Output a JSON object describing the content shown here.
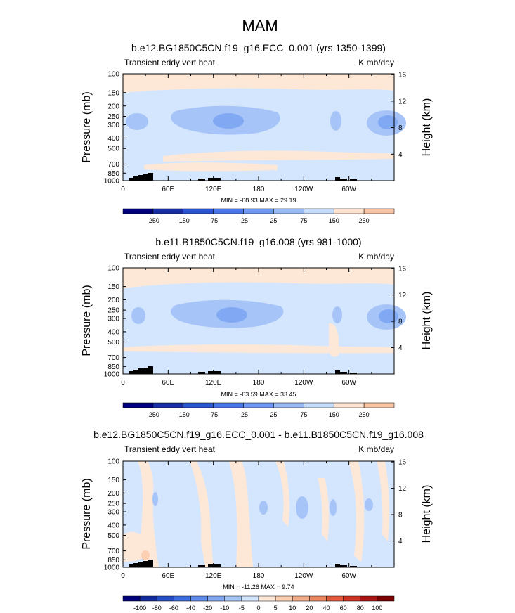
{
  "figure_title": "MAM",
  "chart_data": [
    {
      "type": "heatmap",
      "title": "b.e12.BG1850C5CN.f19_g16.ECC_0.001 (yrs 1350-1399)",
      "left_label": "Transient eddy vert heat",
      "right_label": "K mb/day",
      "ylabel": "Pressure (mb)",
      "ylabel_right": "Height (km)",
      "x_ticks": [
        "0",
        "60E",
        "120E",
        "180",
        "120W",
        "60W"
      ],
      "x_tick_values": [
        0,
        60,
        120,
        180,
        240,
        300
      ],
      "xlim": [
        0,
        360
      ],
      "y_ticks": [
        "100",
        "150",
        "200",
        "250",
        "300",
        "400",
        "500",
        "700",
        "850",
        "1000"
      ],
      "y_tick_values": [
        100,
        150,
        200,
        250,
        300,
        400,
        500,
        700,
        850,
        1000
      ],
      "ylim": [
        1000,
        100
      ],
      "y_right_ticks": [
        "4",
        "8",
        "12",
        "16"
      ],
      "y_right_values": [
        4,
        8,
        12,
        16
      ],
      "stats": "MIN = -68.93  MAX =  29.19",
      "min": -68.93,
      "max": 29.19,
      "colorbar_ticks": [
        "-250",
        "-150",
        "-75",
        "-25",
        "25",
        "75",
        "150",
        "250"
      ]
    },
    {
      "type": "heatmap",
      "title": "b.e11.B1850C5CN.f19_g16.008 (yrs 981-1000)",
      "left_label": "Transient eddy vert heat",
      "right_label": "K mb/day",
      "ylabel": "Pressure (mb)",
      "ylabel_right": "Height (km)",
      "x_ticks": [
        "0",
        "60E",
        "120E",
        "180",
        "120W",
        "60W"
      ],
      "x_tick_values": [
        0,
        60,
        120,
        180,
        240,
        300
      ],
      "xlim": [
        0,
        360
      ],
      "y_ticks": [
        "100",
        "150",
        "200",
        "250",
        "300",
        "400",
        "500",
        "700",
        "850",
        "1000"
      ],
      "y_tick_values": [
        100,
        150,
        200,
        250,
        300,
        400,
        500,
        700,
        850,
        1000
      ],
      "ylim": [
        1000,
        100
      ],
      "y_right_ticks": [
        "4",
        "8",
        "12",
        "16"
      ],
      "y_right_values": [
        4,
        8,
        12,
        16
      ],
      "stats": "MIN = -63.59  MAX =  33.45",
      "min": -63.59,
      "max": 33.45,
      "colorbar_ticks": [
        "-250",
        "-150",
        "-75",
        "-25",
        "25",
        "75",
        "150",
        "250"
      ]
    },
    {
      "type": "heatmap",
      "title": "b.e12.BG1850C5CN.f19_g16.ECC_0.001 - b.e11.B1850C5CN.f19_g16.008",
      "left_label": "Transient eddy vert heat",
      "right_label": "K mb/day",
      "ylabel": "Pressure (mb)",
      "ylabel_right": "Height (km)",
      "x_ticks": [
        "0",
        "60E",
        "120E",
        "180",
        "120W",
        "60W"
      ],
      "x_tick_values": [
        0,
        60,
        120,
        180,
        240,
        300
      ],
      "xlim": [
        0,
        360
      ],
      "y_ticks": [
        "100",
        "150",
        "200",
        "250",
        "300",
        "400",
        "500",
        "700",
        "850",
        "1000"
      ],
      "y_tick_values": [
        100,
        150,
        200,
        250,
        300,
        400,
        500,
        700,
        850,
        1000
      ],
      "ylim": [
        1000,
        100
      ],
      "y_right_ticks": [
        "4",
        "8",
        "12",
        "16"
      ],
      "y_right_values": [
        4,
        8,
        12,
        16
      ],
      "stats": "MIN = -11.26  MAX =  9.74",
      "min": -11.26,
      "max": 9.74,
      "colorbar_ticks": [
        "-100",
        "-80",
        "-60",
        "-40",
        "-20",
        "-10",
        "-5",
        "0",
        "5",
        "10",
        "20",
        "40",
        "60",
        "80",
        "100"
      ]
    }
  ],
  "colors": {
    "ramp14": [
      "#00007f",
      "#1a2fa6",
      "#2a55d0",
      "#4a78ea",
      "#6f98f2",
      "#9ab9f7",
      "#c6dcfb",
      "#fde4d2",
      "#f9c4a4",
      "#f29c75",
      "#e8704a",
      "#d44525",
      "#b12114",
      "#7f0000"
    ],
    "ramp16": [
      "#00007f",
      "#142aa0",
      "#2350c8",
      "#3b6fe3",
      "#5d8ced",
      "#80a8f3",
      "#a6c4f8",
      "#d4e6fd",
      "#fde8d8",
      "#fbcfb1",
      "#f6ae88",
      "#ee865e",
      "#e25c3b",
      "#cc3620",
      "#a71711",
      "#7f0000"
    ],
    "land": "#000000"
  }
}
